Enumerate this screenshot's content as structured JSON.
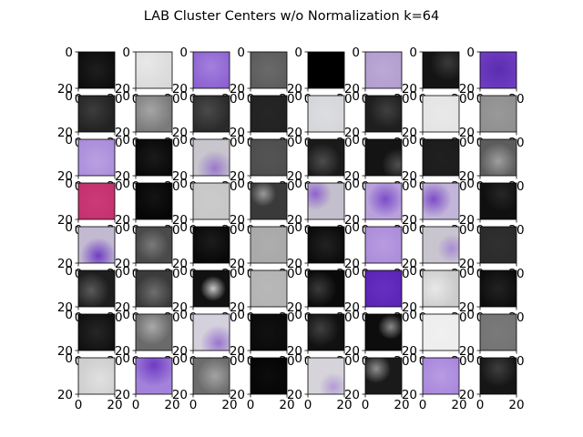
{
  "chart_data": {
    "type": "image-grid",
    "title": "LAB Cluster Centers w/o Normalization k=64",
    "rows": 8,
    "cols": 8,
    "xticks": [
      0,
      20
    ],
    "yticks": [
      0,
      20
    ],
    "xlim": [
      0,
      20
    ],
    "ylim": [
      20,
      0
    ],
    "tiles": [
      {
        "base": "#0d0d0d",
        "hl": "#1e1e1e",
        "hx": 0.5,
        "hy": 0.5,
        "hr": 0.6
      },
      {
        "base": "#d9d9d9",
        "hl": "#e8e8e8",
        "hx": 0.3,
        "hy": 0.3,
        "hr": 0.8
      },
      {
        "base": "#8a5fcf",
        "hl": "#a47fde",
        "hx": 0.5,
        "hy": 0.4,
        "hr": 0.7
      },
      {
        "base": "#5a5a5a",
        "hl": "#6a6a6a",
        "hx": 0.5,
        "hy": 0.5,
        "hr": 0.7
      },
      {
        "base": "#000000",
        "hl": "#000000",
        "hx": 0.5,
        "hy": 0.5,
        "hr": 0.5
      },
      {
        "base": "#b19ccf",
        "hl": "#bca9d6",
        "hx": 0.5,
        "hy": 0.5,
        "hr": 0.7
      },
      {
        "base": "#141414",
        "hl": "#3a3a3a",
        "hx": 0.7,
        "hy": 0.3,
        "hr": 0.5
      },
      {
        "base": "#6f3cc2",
        "hl": "#5a2db0",
        "hx": 0.5,
        "hy": 0.5,
        "hr": 0.6
      },
      {
        "base": "#222222",
        "hl": "#3c3c3c",
        "hx": 0.4,
        "hy": 0.4,
        "hr": 0.6
      },
      {
        "base": "#7a7a7a",
        "hl": "#a5a5a5",
        "hx": 0.4,
        "hy": 0.4,
        "hr": 0.6
      },
      {
        "base": "#2a2a2a",
        "hl": "#4a4a4a",
        "hx": 0.4,
        "hy": 0.4,
        "hr": 0.6
      },
      {
        "base": "#222222",
        "hl": "#262626",
        "hx": 0.5,
        "hy": 0.5,
        "hr": 0.6
      },
      {
        "base": "#d4d5d8",
        "hl": "#dcdde0",
        "hx": 0.5,
        "hy": 0.5,
        "hr": 0.7
      },
      {
        "base": "#1f1f1f",
        "hl": "#404040",
        "hx": 0.6,
        "hy": 0.4,
        "hr": 0.5
      },
      {
        "base": "#e3e3e3",
        "hl": "#e9e9e9",
        "hx": 0.5,
        "hy": 0.5,
        "hr": 0.7
      },
      {
        "base": "#8e8e8e",
        "hl": "#999999",
        "hx": 0.5,
        "hy": 0.5,
        "hr": 0.7
      },
      {
        "base": "#a98ad9",
        "hl": "#b9a0e2",
        "hx": 0.5,
        "hy": 0.6,
        "hr": 0.7
      },
      {
        "base": "#080808",
        "hl": "#1a1a1a",
        "hx": 0.5,
        "hy": 0.5,
        "hr": 0.6
      },
      {
        "base": "#c8c6cc",
        "hl": "#9a78cc",
        "hx": 0.6,
        "hy": 0.8,
        "hr": 0.5
      },
      {
        "base": "#4c4c4c",
        "hl": "#555555",
        "hx": 0.5,
        "hy": 0.5,
        "hr": 0.7
      },
      {
        "base": "#1a1a1a",
        "hl": "#4c4c4c",
        "hx": 0.4,
        "hy": 0.6,
        "hr": 0.5
      },
      {
        "base": "#141414",
        "hl": "#505050",
        "hx": 0.9,
        "hy": 0.7,
        "hr": 0.45
      },
      {
        "base": "#1c1c1c",
        "hl": "#202020",
        "hx": 0.5,
        "hy": 0.5,
        "hr": 0.6
      },
      {
        "base": "#5c5c5c",
        "hl": "#9e9e9e",
        "hx": 0.5,
        "hy": 0.6,
        "hr": 0.5
      },
      {
        "base": "#c3306c",
        "hl": "#cc3a78",
        "hx": 0.5,
        "hy": 0.5,
        "hr": 0.7
      },
      {
        "base": "#050505",
        "hl": "#141414",
        "hx": 0.5,
        "hy": 0.4,
        "hr": 0.6
      },
      {
        "base": "#c6c6c6",
        "hl": "#cbcbcb",
        "hx": 0.5,
        "hy": 0.5,
        "hr": 0.7
      },
      {
        "base": "#3a3a3a",
        "hl": "#9a9a9a",
        "hx": 0.35,
        "hy": 0.3,
        "hr": 0.35
      },
      {
        "base": "#c4bfcc",
        "hl": "#8e62cf",
        "hx": 0.2,
        "hy": 0.3,
        "hr": 0.45
      },
      {
        "base": "#b9a2dc",
        "hl": "#7c4bc8",
        "hx": 0.55,
        "hy": 0.45,
        "hr": 0.5
      },
      {
        "base": "#c2b5d9",
        "hl": "#7d4cc8",
        "hx": 0.3,
        "hy": 0.45,
        "hr": 0.5
      },
      {
        "base": "#101010",
        "hl": "#262626",
        "hx": 0.6,
        "hy": 0.3,
        "hr": 0.5
      },
      {
        "base": "#c3bad2",
        "hl": "#6f3cc2",
        "hx": 0.55,
        "hy": 0.8,
        "hr": 0.5
      },
      {
        "base": "#4a4a4a",
        "hl": "#7a7a7a",
        "hx": 0.45,
        "hy": 0.5,
        "hr": 0.45
      },
      {
        "base": "#080808",
        "hl": "#1c1c1c",
        "hx": 0.5,
        "hy": 0.4,
        "hr": 0.6
      },
      {
        "base": "#a8a8a8",
        "hl": "#adadad",
        "hx": 0.5,
        "hy": 0.5,
        "hr": 0.7
      },
      {
        "base": "#0a0a0a",
        "hl": "#222222",
        "hx": 0.5,
        "hy": 0.5,
        "hr": 0.6
      },
      {
        "base": "#a98ad9",
        "hl": "#b79ce0",
        "hx": 0.5,
        "hy": 0.5,
        "hr": 0.7
      },
      {
        "base": "#c9c5cf",
        "hl": "#a88bd2",
        "hx": 0.8,
        "hy": 0.6,
        "hr": 0.4
      },
      {
        "base": "#2b2b2b",
        "hl": "#303030",
        "hx": 0.5,
        "hy": 0.5,
        "hr": 0.6
      },
      {
        "base": "#1e1e1e",
        "hl": "#5a5a5a",
        "hx": 0.35,
        "hy": 0.55,
        "hr": 0.5
      },
      {
        "base": "#3a3a3a",
        "hl": "#6e6e6e",
        "hx": 0.5,
        "hy": 0.6,
        "hr": 0.5
      },
      {
        "base": "#111111",
        "hl": "#c8c8c8",
        "hx": 0.55,
        "hy": 0.5,
        "hr": 0.35
      },
      {
        "base": "#b3b3b3",
        "hl": "#b8b8b8",
        "hx": 0.5,
        "hy": 0.5,
        "hr": 0.7
      },
      {
        "base": "#0a0a0a",
        "hl": "#3a3a3a",
        "hx": 0.3,
        "hy": 0.5,
        "hr": 0.5
      },
      {
        "base": "#5b22b5",
        "hl": "#6530c0",
        "hx": 0.5,
        "hy": 0.5,
        "hr": 0.7
      },
      {
        "base": "#cbcbcb",
        "hl": "#e8e8e8",
        "hx": 0.35,
        "hy": 0.5,
        "hr": 0.6
      },
      {
        "base": "#0c0c0c",
        "hl": "#222222",
        "hx": 0.5,
        "hy": 0.5,
        "hr": 0.6
      },
      {
        "base": "#101010",
        "hl": "#262626",
        "hx": 0.5,
        "hy": 0.5,
        "hr": 0.6
      },
      {
        "base": "#6a6a6a",
        "hl": "#a9a9a9",
        "hx": 0.45,
        "hy": 0.35,
        "hr": 0.5
      },
      {
        "base": "#d4d0dc",
        "hl": "#9a74cf",
        "hx": 0.7,
        "hy": 0.8,
        "hr": 0.5
      },
      {
        "base": "#0a0a0a",
        "hl": "#111111",
        "hx": 0.5,
        "hy": 0.5,
        "hr": 0.6
      },
      {
        "base": "#111111",
        "hl": "#404040",
        "hx": 0.35,
        "hy": 0.4,
        "hr": 0.5
      },
      {
        "base": "#0d0d0d",
        "hl": "#8a8a8a",
        "hx": 0.7,
        "hy": 0.35,
        "hr": 0.35
      },
      {
        "base": "#ededed",
        "hl": "#f0f0f0",
        "hx": 0.5,
        "hy": 0.5,
        "hr": 0.7
      },
      {
        "base": "#737373",
        "hl": "#7a7a7a",
        "hx": 0.5,
        "hy": 0.5,
        "hr": 0.7
      },
      {
        "base": "#cfcfcf",
        "hl": "#e0e0e0",
        "hx": 0.6,
        "hy": 0.6,
        "hr": 0.6
      },
      {
        "base": "#a382db",
        "hl": "#6f3cc2",
        "hx": 0.5,
        "hy": 0.2,
        "hr": 0.6
      },
      {
        "base": "#6c6c6c",
        "hl": "#a3a3a3",
        "hx": 0.6,
        "hy": 0.5,
        "hr": 0.5
      },
      {
        "base": "#050505",
        "hl": "#0c0c0c",
        "hx": 0.5,
        "hy": 0.5,
        "hr": 0.6
      },
      {
        "base": "#d6d4da",
        "hl": "#b39bd6",
        "hx": 0.7,
        "hy": 0.8,
        "hr": 0.4
      },
      {
        "base": "#1a1a1a",
        "hl": "#8f8f8f",
        "hx": 0.3,
        "hy": 0.3,
        "hr": 0.4
      },
      {
        "base": "#a784dc",
        "hl": "#b79be2",
        "hx": 0.5,
        "hy": 0.5,
        "hr": 0.7
      },
      {
        "base": "#161616",
        "hl": "#3e3e3e",
        "hx": 0.5,
        "hy": 0.3,
        "hr": 0.5
      }
    ]
  }
}
